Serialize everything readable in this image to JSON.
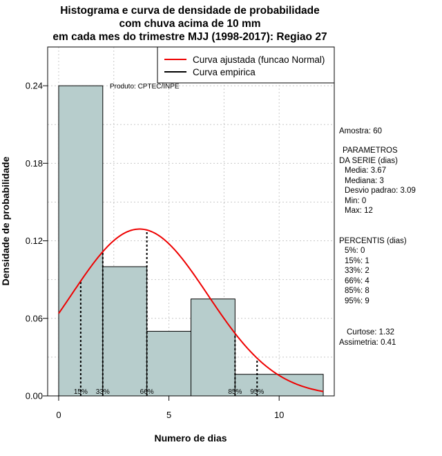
{
  "chart_data": {
    "type": "bar",
    "title_lines": [
      "Histograma e curva de densidade de probabilidade",
      "com chuva acima de 10 mm",
      "em cada mes do trimestre MJJ (1998-2017): Regiao 27"
    ],
    "xlabel": "Numero de dias",
    "ylabel": "Densidade de probabilidade",
    "xlim": [
      -0.5,
      12.5
    ],
    "ylim": [
      0,
      0.27
    ],
    "xticks": [
      "0",
      "5",
      "10"
    ],
    "yticks": [
      "0.00",
      "0.06",
      "0.12",
      "0.18",
      "0.24"
    ],
    "xtick_values": [
      0,
      5,
      10
    ],
    "ytick_values": [
      0,
      0.06,
      0.12,
      0.18,
      0.24
    ],
    "grid": true,
    "bins": [
      {
        "start": 0,
        "end": 2,
        "density": 0.24
      },
      {
        "start": 2,
        "end": 4,
        "density": 0.1
      },
      {
        "start": 4,
        "end": 6,
        "density": 0.05
      },
      {
        "start": 6,
        "end": 8,
        "density": 0.075
      },
      {
        "start": 8,
        "end": 12,
        "density": 0.0167
      }
    ],
    "normal_curve": {
      "mean": 3.67,
      "sd": 3.09,
      "color": "#ee0000"
    },
    "percentile_lines": [
      {
        "label": "15%",
        "x": 1
      },
      {
        "label": "33%",
        "x": 2
      },
      {
        "label": "66%",
        "x": 4
      },
      {
        "label": "85%",
        "x": 8
      },
      {
        "label": "95%",
        "x": 9
      }
    ],
    "legend": [
      {
        "label": "Curva ajustada (funcao Normal)",
        "color": "#ee0000"
      },
      {
        "label": "Curva empirica",
        "color": "#000000"
      }
    ],
    "legend_position": "top-right",
    "bar_color": "#b7cdcc",
    "produto": "Produto: CPTEC/INPE"
  },
  "stats": {
    "amostra": "Amostra: 60",
    "parametros_title1": "PARAMETROS",
    "parametros_title2": "DA SERIE (dias)",
    "media": "Media: 3.67",
    "mediana": "Mediana: 3",
    "desvio": "Desvio padrao: 3.09",
    "min": "Min: 0",
    "max": "Max: 12",
    "percentis_title": "PERCENTIS (dias)",
    "p5": "5%: 0",
    "p15": "15%: 1",
    "p33": "33%: 2",
    "p66": "66%: 4",
    "p85": "85%: 8",
    "p95": "95%: 9",
    "curtose": "Curtose: 1.32",
    "assimetria": "Assimetria: 0.41"
  }
}
